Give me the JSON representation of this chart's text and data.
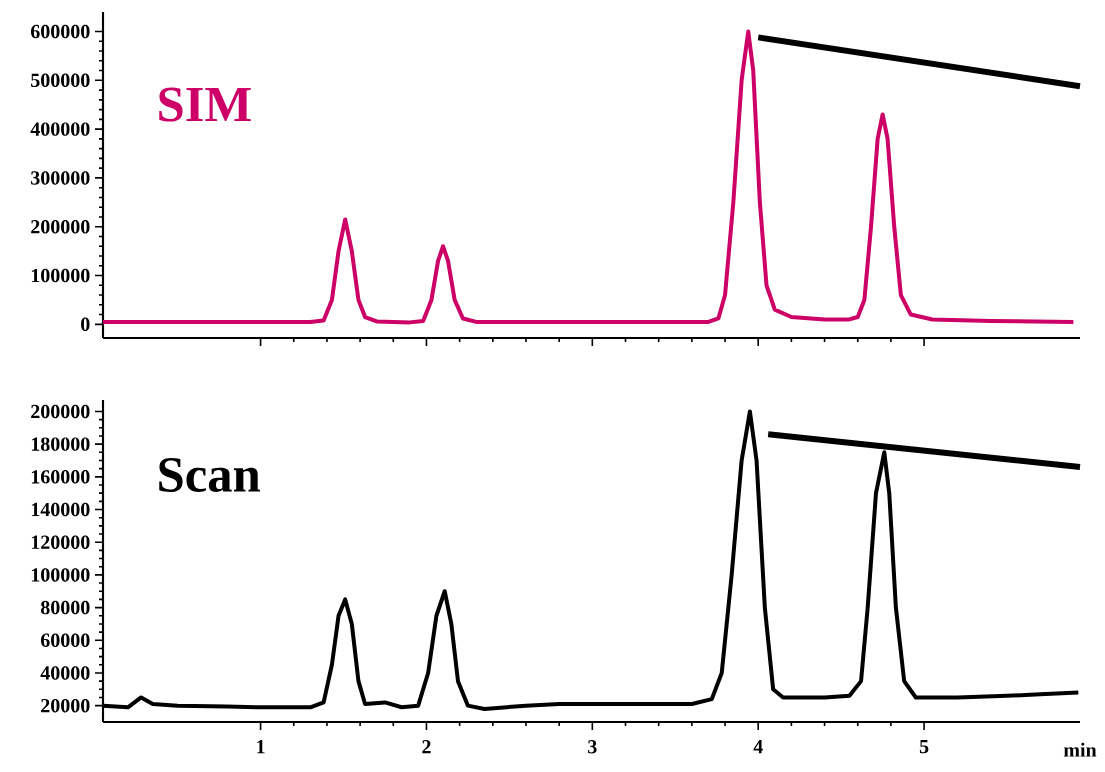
{
  "chart_data": [
    {
      "type": "line",
      "xlim": [
        0.05,
        5.94
      ],
      "ylim": [
        -28000,
        640000
      ],
      "xticks": [
        1,
        2,
        3,
        4,
        5
      ],
      "yticks": [
        0,
        100000,
        200000,
        300000,
        400000,
        500000,
        600000
      ],
      "tick_labels": "y",
      "series": [
        {
          "name": "SIM",
          "color": "#cc0066",
          "x": [
            0.05,
            1.3,
            1.38,
            1.43,
            1.47,
            1.51,
            1.55,
            1.59,
            1.63,
            1.7,
            1.9,
            1.98,
            2.03,
            2.07,
            2.1,
            2.13,
            2.17,
            2.22,
            2.3,
            3.7,
            3.76,
            3.8,
            3.85,
            3.9,
            3.94,
            3.97,
            4.01,
            4.05,
            4.1,
            4.2,
            4.4,
            4.55,
            4.6,
            4.64,
            4.68,
            4.72,
            4.75,
            4.78,
            4.82,
            4.86,
            4.92,
            5.05,
            5.4,
            5.9
          ],
          "values": [
            5000,
            5000,
            8000,
            50000,
            150000,
            215000,
            150000,
            50000,
            15000,
            6000,
            4000,
            7000,
            50000,
            130000,
            160000,
            130000,
            50000,
            12000,
            5000,
            5000,
            12000,
            60000,
            250000,
            500000,
            600000,
            520000,
            250000,
            80000,
            30000,
            15000,
            10000,
            10000,
            15000,
            50000,
            200000,
            380000,
            430000,
            380000,
            200000,
            60000,
            20000,
            10000,
            7000,
            5000
          ]
        },
        {
          "color": "#000000",
          "x": [
            4.0,
            5.94
          ],
          "values": [
            588000,
            488000
          ]
        }
      ]
    },
    {
      "type": "line",
      "xlim": [
        0.05,
        5.94
      ],
      "ylim": [
        10000,
        207000
      ],
      "xticks": [
        1,
        2,
        3,
        4,
        5
      ],
      "yticks": [
        20000,
        40000,
        60000,
        80000,
        100000,
        120000,
        140000,
        160000,
        180000,
        200000
      ],
      "xlabel": "min",
      "series": [
        {
          "name": "Scan",
          "color": "#000000",
          "x": [
            0.05,
            0.2,
            0.28,
            0.35,
            0.5,
            0.8,
            1.0,
            1.3,
            1.38,
            1.43,
            1.47,
            1.51,
            1.55,
            1.59,
            1.63,
            1.75,
            1.85,
            1.95,
            2.01,
            2.06,
            2.11,
            2.15,
            2.19,
            2.25,
            2.35,
            2.6,
            2.8,
            3.0,
            3.3,
            3.6,
            3.72,
            3.78,
            3.84,
            3.9,
            3.95,
            3.99,
            4.04,
            4.09,
            4.15,
            4.4,
            4.55,
            4.62,
            4.66,
            4.71,
            4.76,
            4.79,
            4.83,
            4.88,
            4.95,
            5.2,
            5.5,
            5.7,
            5.93
          ],
          "values": [
            20000,
            19000,
            25000,
            21000,
            20000,
            19500,
            19000,
            19000,
            22000,
            45000,
            75000,
            85000,
            70000,
            35000,
            21000,
            22000,
            19000,
            20000,
            40000,
            75000,
            90000,
            70000,
            35000,
            20000,
            18000,
            20000,
            21000,
            21000,
            21000,
            21000,
            24000,
            40000,
            100000,
            170000,
            200000,
            170000,
            80000,
            30000,
            25000,
            25000,
            26000,
            35000,
            80000,
            150000,
            175000,
            150000,
            80000,
            35000,
            25000,
            25000,
            26000,
            27000,
            28000
          ]
        },
        {
          "color": "#000000",
          "x": [
            4.06,
            5.94
          ],
          "values": [
            186000,
            166000
          ]
        }
      ]
    }
  ]
}
